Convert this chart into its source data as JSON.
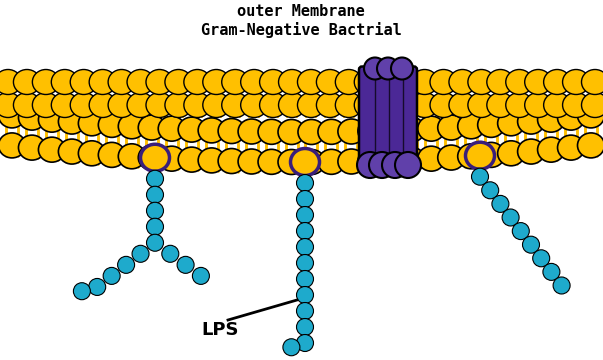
{
  "background_color": "#ffffff",
  "cyan_color": "#1EAACC",
  "gold_color": "#FFC000",
  "purple_color": "#4B2896",
  "purple_outline": "#3A1E7A",
  "black": "#000000",
  "title_line1": "Gram-Negative Bactrial",
  "title_line2": "outer Membrane",
  "lps_label": "LPS",
  "fig_width": 6.03,
  "fig_height": 3.6,
  "dpi": 100
}
